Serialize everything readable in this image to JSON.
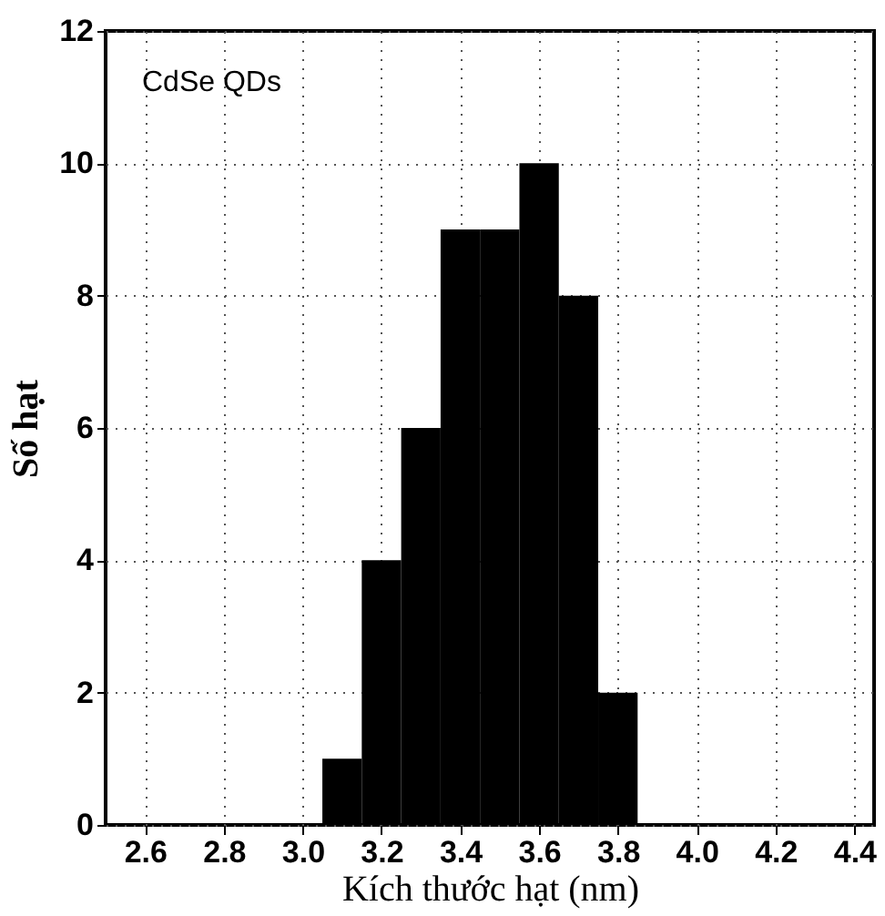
{
  "chart_data": {
    "type": "histogram",
    "bins": [
      3.05,
      3.15,
      3.25,
      3.35,
      3.45,
      3.55,
      3.65,
      3.75,
      3.85
    ],
    "values": [
      1,
      4,
      6,
      9,
      9,
      10,
      8,
      2
    ],
    "color": "#000000",
    "xlabel": "Kích thước hạt (nm)",
    "ylabel": "Số hạt",
    "annotations": [
      "CdSe QDs"
    ],
    "xlim": [
      2.5,
      4.45
    ],
    "xticks": [
      {
        "value": 2.6,
        "label": "2.6"
      },
      {
        "value": 2.8,
        "label": "2.8"
      },
      {
        "value": 3.0,
        "label": "3.0"
      },
      {
        "value": 3.2,
        "label": "3.2"
      },
      {
        "value": 3.4,
        "label": "3.4"
      },
      {
        "value": 3.6,
        "label": "3.6"
      },
      {
        "value": 3.8,
        "label": "3.8"
      },
      {
        "value": 4.0,
        "label": "4.0"
      },
      {
        "value": 4.2,
        "label": "4.2"
      },
      {
        "value": 4.4,
        "label": "4.4"
      }
    ],
    "ylim": [
      0,
      12
    ],
    "yticks": [
      0,
      2,
      4,
      6,
      8,
      10,
      12
    ],
    "grid": true
  }
}
